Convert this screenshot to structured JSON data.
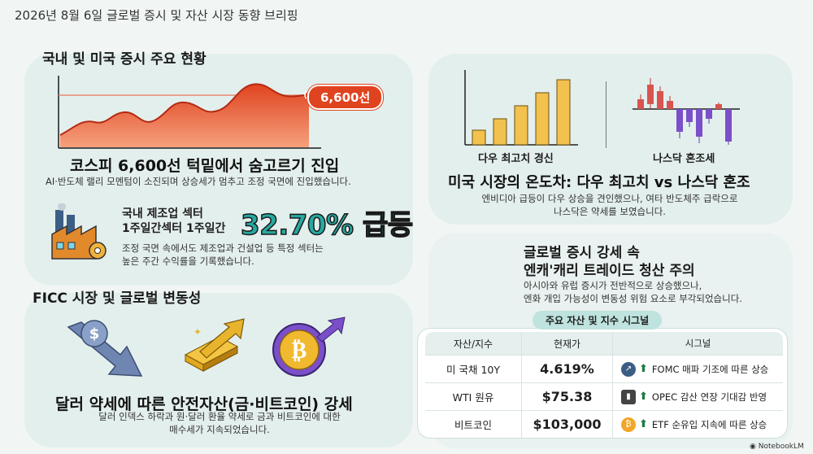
{
  "header": {
    "title": "2026년 8월 6일 글로벌 증시 및 자산 시장 동향 브리핑"
  },
  "domestic": {
    "section_title": "국내 및 미국 증시 주요 현황",
    "chart_badge": "6,600선",
    "headline": "코스피 6,600선 턱밑에서 숨고르기 진입",
    "desc": "AI·반도체 랠리 모멘텀이 소진되며 상승세가 멈추고 조정 국면에 진입했습니다.",
    "sector_line1": "국내 제조업 섹터",
    "sector_line2": "1주일간섹터 1주일간",
    "sector_pct": "32.70% 급등",
    "sector_desc1": "조정 국면 속에서도 제조업과 건설업 등 특정 섹터는",
    "sector_desc2": "높은 주간 수익률을 기록했습니다."
  },
  "us": {
    "dow_label": "다우 최고치 경신",
    "nasdaq_label": "나스닥 혼조세",
    "headline": "미국 시장의 온도차: 다우 최고치 vs 나스닥 혼조",
    "desc1": "엔비디아 급등이 다우 상승을 견인했으나, 여타 반도체주 급락으로",
    "desc2": "나스닥은 약세를 보였습니다."
  },
  "ficc": {
    "section_title": "FICC 시장 및 글로벌 변동성",
    "headline": "달러 약세에 따른 안전자산(금·비트코인) 강세",
    "desc1": "달러 인덱스 하락과 원·달러 환율 약세로 금과 비트코인에 대한",
    "desc2": "매수세가 지속되었습니다."
  },
  "global": {
    "headline1": "글로벌 증시 강세 속",
    "headline2": "엔캐'캐리 트레이드 청산 주의",
    "desc1": "아시아와 유럽 증시가 전반적으로 상승했으나,",
    "desc2": "엔화 개입 가능성이 변동성 위험 요소로 부각되었습니다."
  },
  "signal_table": {
    "title": "주요 자산 및 지수 시그널",
    "headers": [
      "자산/지수",
      "현재가",
      "시그널"
    ],
    "rows": [
      {
        "asset": "미 국채 10Y",
        "price": "4.619%",
        "signal": "FOMC 매파 기조에 따른 상승",
        "icon": "trend-icon"
      },
      {
        "asset": "WTI 원유",
        "price": "$75.38",
        "signal": "OPEC 감산 연장 기대감 반영",
        "icon": "oil-barrel-icon"
      },
      {
        "asset": "비트코인",
        "price": "$103,000",
        "signal": "ETF 순유입 지속에 따른 상승",
        "icon": "bitcoin-icon"
      }
    ]
  },
  "watermark": "NotebookLM",
  "colors": {
    "accent_red": "#e0431f",
    "teal": "#26a9a0",
    "panel": "#e3efed",
    "gold": "#e7b42c",
    "purple": "#7b4fc9"
  }
}
